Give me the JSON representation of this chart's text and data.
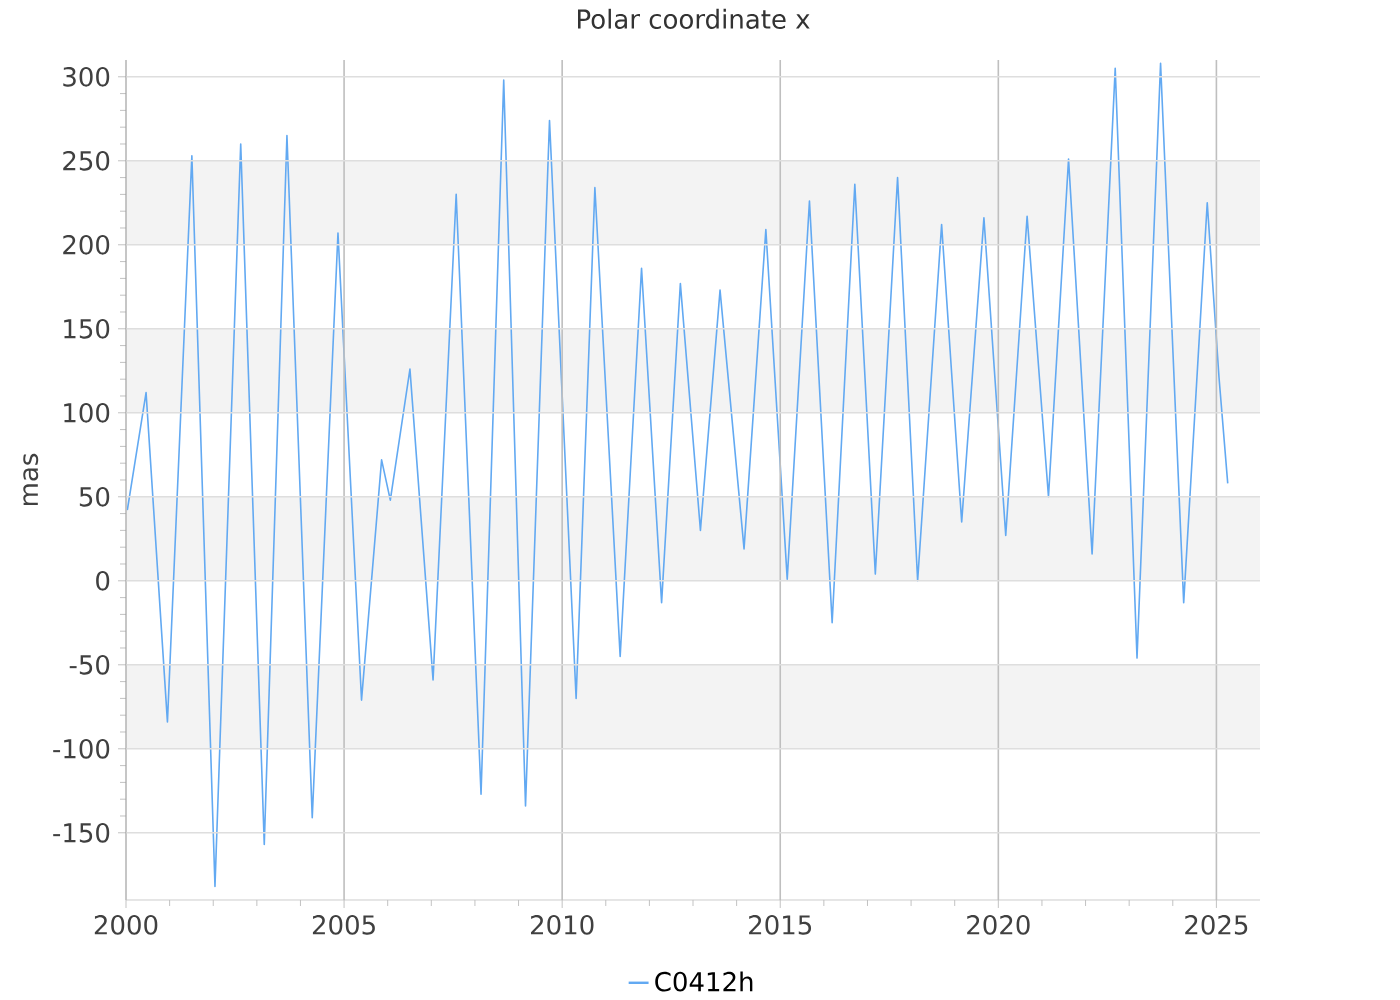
{
  "chart_data": {
    "type": "line",
    "title": "Polar coordinate x",
    "ylabel": "mas",
    "xlim": [
      2000,
      2026
    ],
    "ylim": [
      -190,
      310
    ],
    "xticks": [
      2000,
      2005,
      2010,
      2015,
      2020,
      2025
    ],
    "yticks": [
      -150,
      -100,
      -50,
      0,
      50,
      100,
      150,
      200,
      250,
      300
    ],
    "grid": true,
    "legend": "bottom",
    "marker": "none",
    "line_style": "solid",
    "bands": [
      {
        "axis": "y",
        "from": 200,
        "to": 250,
        "color": "#f3f3f3"
      },
      {
        "axis": "y",
        "from": 100,
        "to": 150,
        "color": "#f3f3f3"
      },
      {
        "axis": "y",
        "from": 0,
        "to": 50,
        "color": "#f3f3f3"
      },
      {
        "axis": "y",
        "from": -100,
        "to": -50,
        "color": "#f3f3f3"
      }
    ],
    "series": [
      {
        "name": "C0412h",
        "color": "#62a9f2",
        "x": [
          2000.03,
          2000.46,
          2000.95,
          2001.51,
          2002.04,
          2002.63,
          2003.17,
          2003.69,
          2004.27,
          2004.86,
          2005.4,
          2005.86,
          2006.06,
          2006.51,
          2007.04,
          2007.57,
          2008.14,
          2008.66,
          2009.16,
          2009.71,
          2010.32,
          2010.75,
          2011.33,
          2011.82,
          2012.28,
          2012.71,
          2013.17,
          2013.62,
          2014.17,
          2014.67,
          2015.16,
          2015.67,
          2016.19,
          2016.71,
          2017.18,
          2017.69,
          2018.15,
          2018.7,
          2019.16,
          2019.67,
          2020.17,
          2020.66,
          2021.15,
          2021.61,
          2022.15,
          2022.68,
          2023.18,
          2023.72,
          2024.25,
          2024.79,
          2025.06,
          2025.26
        ],
        "values": [
          42,
          112,
          -84,
          253,
          -182,
          260,
          -157,
          265,
          -141,
          207,
          -71,
          72,
          48,
          126,
          -59,
          230,
          -127,
          298,
          -134,
          274,
          -70,
          234,
          -45,
          186,
          -13,
          177,
          30,
          173,
          19,
          209,
          1,
          226,
          -25,
          236,
          4,
          240,
          0,
          212,
          35,
          216,
          27,
          217,
          50,
          251,
          16,
          305,
          -46,
          308,
          -13,
          225,
          121,
          58
        ]
      }
    ]
  }
}
